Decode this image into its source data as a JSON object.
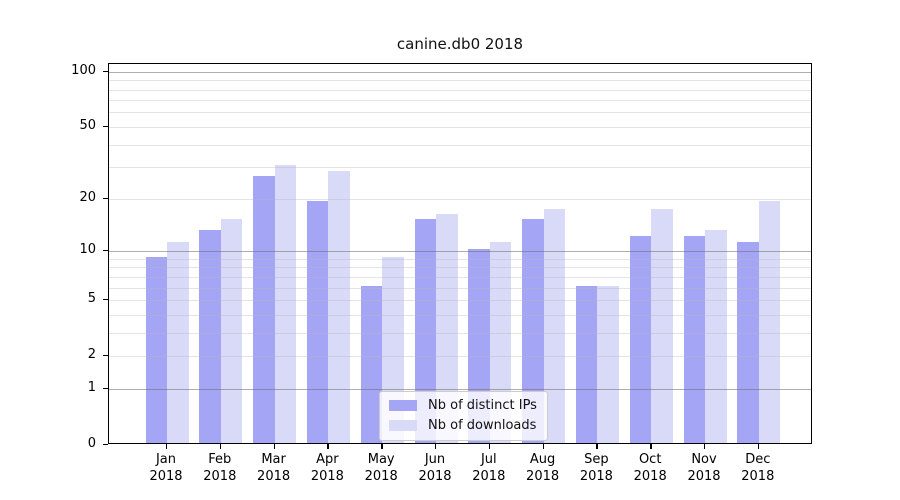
{
  "chart_data": {
    "type": "bar",
    "title": "canine.db0 2018",
    "categories": [
      "Jan",
      "Feb",
      "Mar",
      "Apr",
      "May",
      "Jun",
      "Jul",
      "Aug",
      "Sep",
      "Oct",
      "Nov",
      "Dec"
    ],
    "category_sublabel": "2018",
    "series": [
      {
        "name": "Nb of distinct IPs",
        "color": "#a5a5f5",
        "values": [
          9,
          13,
          26,
          19,
          6,
          15,
          10,
          15,
          6,
          12,
          12,
          11
        ]
      },
      {
        "name": "Nb of downloads",
        "color": "#d9d9f8",
        "values": [
          11,
          15,
          30,
          28,
          9,
          16,
          11,
          17,
          6,
          17,
          13,
          19
        ]
      }
    ],
    "y_axis": {
      "scale": "log1p",
      "ticks": [
        0,
        1,
        2,
        5,
        10,
        20,
        50,
        100
      ],
      "max": 110,
      "major_gridlines": [
        1,
        10,
        100
      ],
      "minor_gridlines": [
        2,
        3,
        4,
        5,
        6,
        7,
        8,
        9,
        20,
        30,
        40,
        50,
        60,
        70,
        80,
        90
      ]
    },
    "xlabel": "",
    "ylabel": "",
    "ylim": [
      0,
      110
    ],
    "grid": "on",
    "legend": {
      "position": "lower center inside",
      "entries": [
        "Nb of distinct IPs",
        "Nb of downloads"
      ]
    },
    "colors": {
      "bar_distinct_ips": "#a5a5f5",
      "bar_downloads": "#d9d9f8",
      "major_grid": "#a8a8a8",
      "minor_grid": "#e7e7e7",
      "axis": "#000000",
      "background": "#ffffff",
      "text": "#000000"
    }
  }
}
